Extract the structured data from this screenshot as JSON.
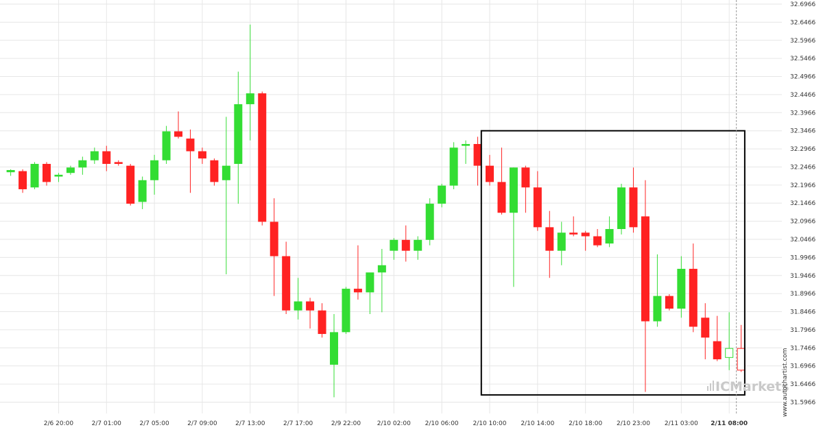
{
  "chart_data": {
    "type": "candlestick",
    "y_axis": {
      "ylim": [
        31.5766,
        32.6966
      ],
      "tick_labels": [
        "32.6966",
        "32.6466",
        "32.5966",
        "32.5466",
        "32.4966",
        "32.4466",
        "32.3966",
        "32.3466",
        "32.2966",
        "32.2466",
        "32.1966",
        "32.1466",
        "32.0966",
        "32.0466",
        "31.9966",
        "31.9466",
        "31.8966",
        "31.8466",
        "31.7966",
        "31.7466",
        "31.6966",
        "31.6466",
        "31.5966"
      ],
      "side": "right",
      "grid": true
    },
    "x_axis": {
      "tick_labels": [
        {
          "text": "2/6 20:00",
          "bar": 4
        },
        {
          "text": "2/7 01:00",
          "bar": 8
        },
        {
          "text": "2/7 05:00",
          "bar": 12
        },
        {
          "text": "2/7 09:00",
          "bar": 16
        },
        {
          "text": "2/7 13:00",
          "bar": 20
        },
        {
          "text": "2/7 17:00",
          "bar": 24
        },
        {
          "text": "2/9 22:00",
          "bar": 28
        },
        {
          "text": "2/10 02:00",
          "bar": 32
        },
        {
          "text": "2/10 06:00",
          "bar": 36
        },
        {
          "text": "2/10 10:00",
          "bar": 40
        },
        {
          "text": "2/10 14:00",
          "bar": 44
        },
        {
          "text": "2/10 18:00",
          "bar": 48
        },
        {
          "text": "2/10 23:00",
          "bar": 52
        },
        {
          "text": "2/11 03:00",
          "bar": 56
        },
        {
          "text": "2/11 08:00",
          "bar": 60,
          "bold": true
        }
      ],
      "grid": true
    },
    "candles": [
      {
        "o": 32.232,
        "h": 32.24,
        "l": 32.222,
        "c": 32.238
      },
      {
        "o": 32.235,
        "h": 32.24,
        "l": 32.175,
        "c": 32.185
      },
      {
        "o": 32.19,
        "h": 32.26,
        "l": 32.185,
        "c": 32.255
      },
      {
        "o": 32.255,
        "h": 32.26,
        "l": 32.195,
        "c": 32.205
      },
      {
        "o": 32.22,
        "h": 32.23,
        "l": 32.205,
        "c": 32.225
      },
      {
        "o": 32.23,
        "h": 32.25,
        "l": 32.225,
        "c": 32.245
      },
      {
        "o": 32.245,
        "h": 32.275,
        "l": 32.225,
        "c": 32.265
      },
      {
        "o": 32.265,
        "h": 32.3,
        "l": 32.255,
        "c": 32.29
      },
      {
        "o": 32.29,
        "h": 32.305,
        "l": 32.235,
        "c": 32.255
      },
      {
        "o": 32.26,
        "h": 32.265,
        "l": 32.25,
        "c": 32.255
      },
      {
        "o": 32.25,
        "h": 32.255,
        "l": 32.14,
        "c": 32.145
      },
      {
        "o": 32.15,
        "h": 32.22,
        "l": 32.13,
        "c": 32.21
      },
      {
        "o": 32.21,
        "h": 32.28,
        "l": 32.17,
        "c": 32.265
      },
      {
        "o": 32.265,
        "h": 32.36,
        "l": 32.255,
        "c": 32.345
      },
      {
        "o": 32.345,
        "h": 32.4,
        "l": 32.325,
        "c": 32.33
      },
      {
        "o": 32.325,
        "h": 32.35,
        "l": 32.175,
        "c": 32.29
      },
      {
        "o": 32.29,
        "h": 32.3,
        "l": 32.255,
        "c": 32.27
      },
      {
        "o": 32.265,
        "h": 32.27,
        "l": 32.195,
        "c": 32.205
      },
      {
        "o": 32.21,
        "h": 32.385,
        "l": 31.95,
        "c": 32.25
      },
      {
        "o": 32.255,
        "h": 32.51,
        "l": 32.145,
        "c": 32.42
      },
      {
        "o": 32.42,
        "h": 32.64,
        "l": 32.32,
        "c": 32.45
      },
      {
        "o": 32.45,
        "h": 32.455,
        "l": 32.085,
        "c": 32.095
      },
      {
        "o": 32.095,
        "h": 32.16,
        "l": 31.89,
        "c": 32.0
      },
      {
        "o": 32.0,
        "h": 32.04,
        "l": 31.84,
        "c": 31.85
      },
      {
        "o": 31.85,
        "h": 31.94,
        "l": 31.825,
        "c": 31.875
      },
      {
        "o": 31.875,
        "h": 31.885,
        "l": 31.8,
        "c": 31.85
      },
      {
        "o": 31.85,
        "h": 31.87,
        "l": 31.775,
        "c": 31.785
      },
      {
        "o": 31.7,
        "h": 31.84,
        "l": 31.61,
        "c": 31.79
      },
      {
        "o": 31.79,
        "h": 31.915,
        "l": 31.785,
        "c": 31.91
      },
      {
        "o": 31.91,
        "h": 32.03,
        "l": 31.88,
        "c": 31.9
      },
      {
        "o": 31.9,
        "h": 31.945,
        "l": 31.84,
        "c": 31.955
      },
      {
        "o": 31.955,
        "h": 32.02,
        "l": 31.845,
        "c": 31.975
      },
      {
        "o": 32.015,
        "h": 32.05,
        "l": 31.99,
        "c": 32.045
      },
      {
        "o": 32.045,
        "h": 32.085,
        "l": 31.985,
        "c": 32.015
      },
      {
        "o": 32.015,
        "h": 32.055,
        "l": 31.99,
        "c": 32.045
      },
      {
        "o": 32.045,
        "h": 32.16,
        "l": 32.03,
        "c": 32.145
      },
      {
        "o": 32.145,
        "h": 32.2,
        "l": 32.135,
        "c": 32.195
      },
      {
        "o": 32.195,
        "h": 32.315,
        "l": 32.185,
        "c": 32.3
      },
      {
        "o": 32.305,
        "h": 32.32,
        "l": 32.255,
        "c": 32.31
      },
      {
        "o": 32.31,
        "h": 32.33,
        "l": 32.195,
        "c": 32.25
      },
      {
        "o": 32.25,
        "h": 32.28,
        "l": 32.195,
        "c": 32.205
      },
      {
        "o": 32.205,
        "h": 32.3,
        "l": 32.115,
        "c": 32.12
      },
      {
        "o": 32.12,
        "h": 32.245,
        "l": 31.915,
        "c": 32.245
      },
      {
        "o": 32.245,
        "h": 32.25,
        "l": 32.12,
        "c": 32.19
      },
      {
        "o": 32.19,
        "h": 32.235,
        "l": 32.07,
        "c": 32.08
      },
      {
        "o": 32.08,
        "h": 32.125,
        "l": 31.94,
        "c": 32.015
      },
      {
        "o": 32.015,
        "h": 32.095,
        "l": 31.975,
        "c": 32.065
      },
      {
        "o": 32.065,
        "h": 32.11,
        "l": 32.055,
        "c": 32.06
      },
      {
        "o": 32.065,
        "h": 32.07,
        "l": 32.015,
        "c": 32.055
      },
      {
        "o": 32.055,
        "h": 32.075,
        "l": 32.025,
        "c": 32.03
      },
      {
        "o": 32.035,
        "h": 32.11,
        "l": 32.025,
        "c": 32.075
      },
      {
        "o": 32.075,
        "h": 32.2,
        "l": 32.06,
        "c": 32.19
      },
      {
        "o": 32.19,
        "h": 32.245,
        "l": 32.065,
        "c": 32.08
      },
      {
        "o": 32.11,
        "h": 32.21,
        "l": 31.625,
        "c": 31.82
      },
      {
        "o": 31.82,
        "h": 32.005,
        "l": 31.805,
        "c": 31.89
      },
      {
        "o": 31.89,
        "h": 31.895,
        "l": 31.85,
        "c": 31.855
      },
      {
        "o": 31.855,
        "h": 32.0,
        "l": 31.83,
        "c": 31.965
      },
      {
        "o": 31.965,
        "h": 32.035,
        "l": 31.79,
        "c": 31.805
      },
      {
        "o": 31.83,
        "h": 31.87,
        "l": 31.715,
        "c": 31.775
      },
      {
        "o": 31.765,
        "h": 31.835,
        "l": 31.71,
        "c": 31.715
      },
      {
        "o": 31.72,
        "h": 31.845,
        "l": 31.685,
        "c": 31.745
      },
      {
        "o": 31.745,
        "h": 31.81,
        "l": 31.68,
        "c": 31.685
      }
    ],
    "colors": {
      "up": "#33dd33",
      "down": "#ff2222",
      "hollow_fill": "#ffffff",
      "grid": "#e6e6e6",
      "box": "#000000",
      "now_line": "#999999",
      "axis_text": "#333333"
    },
    "pattern_box": {
      "from_bar": 39.3,
      "to_bar": 61.3,
      "top": 32.3466,
      "bottom": 31.6166
    },
    "now_line_bar": 60.6
  },
  "watermark": {
    "icon": "bars-icon",
    "brand_text": "ICMarkets"
  },
  "source_label": "www.autochartist.com"
}
